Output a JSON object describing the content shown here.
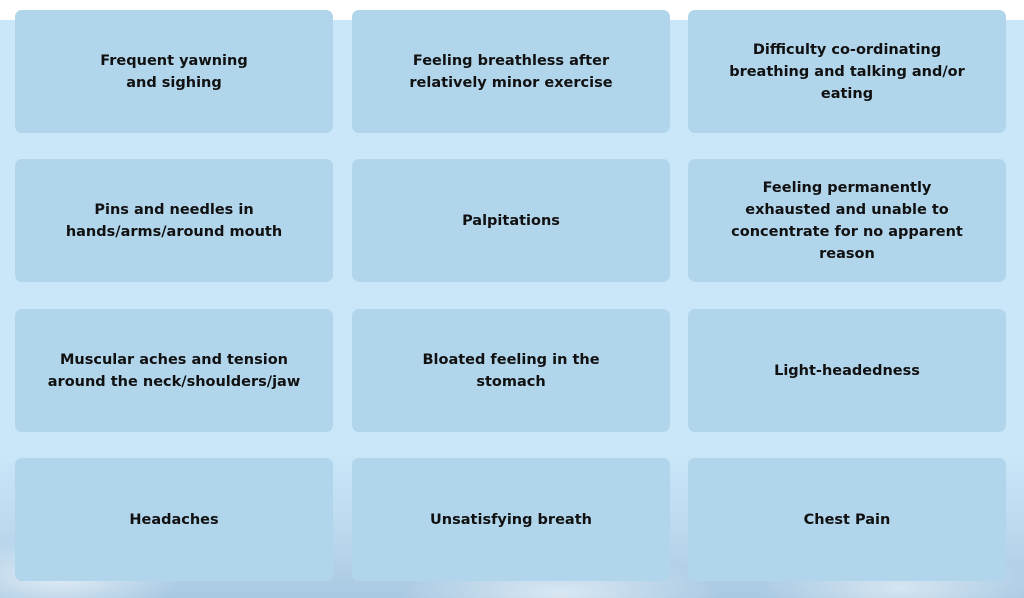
{
  "symptoms": [
    "Frequent yawning and sighing",
    "Feeling breathless after relatively minor exercise",
    "Difficulty co-ordinating breathing and talking and/or eating",
    "Pins and needles in hands/arms/around mouth",
    "Palpitations",
    "Feeling permanently exhausted and unable to concentrate for no apparent reason",
    "Muscular aches and tension around the neck/shoulders/jaw",
    "Bloated feeling in the stomach",
    "Light-headedness",
    "Headaches",
    "Unsatisfying breath",
    "Chest Pain"
  ],
  "colors": {
    "background": "#c9e7f9",
    "card": "#b1d5eb",
    "text": "#111111"
  }
}
